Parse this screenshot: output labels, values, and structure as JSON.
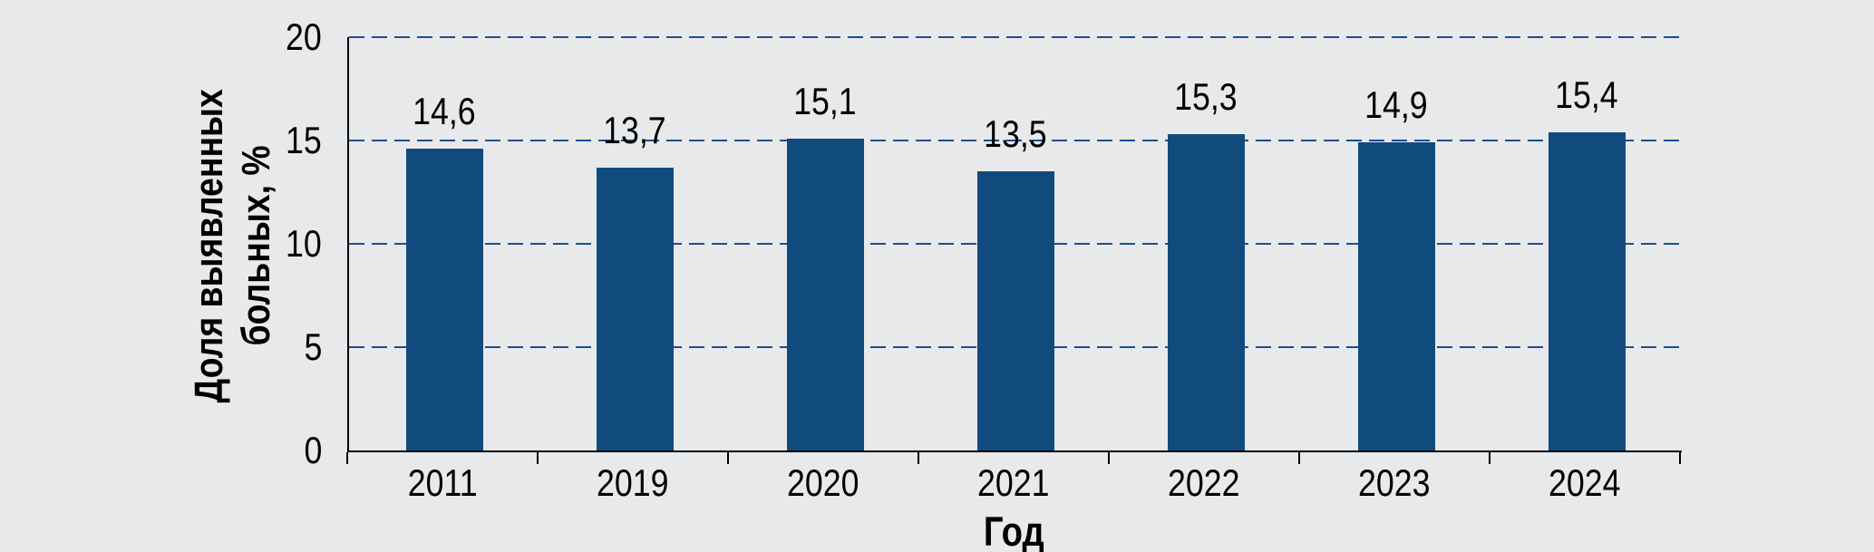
{
  "figure": {
    "background": "#e8e9eb"
  },
  "chart_data": {
    "type": "bar",
    "categories": [
      "2011",
      "2019",
      "2020",
      "2021",
      "2022",
      "2023",
      "2024"
    ],
    "values": [
      14.6,
      13.7,
      15.1,
      13.5,
      15.3,
      14.9,
      15.4
    ],
    "value_labels": [
      "14,6",
      "13,7",
      "15,1",
      "13,5",
      "15,3",
      "14,9",
      "15,4"
    ],
    "xlabel": "Год",
    "ylabel": "Доля выявленных больных, %",
    "ylabel_lines": [
      "Доля выявленных",
      "больных, %"
    ],
    "ylim": [
      0,
      20
    ],
    "yticks": [
      0,
      5,
      10,
      15,
      20
    ],
    "ytick_labels": [
      "0",
      "5",
      "10",
      "15",
      "20"
    ],
    "grid": "horizontal-dashed",
    "legend": "none",
    "bar_color": "#114b7e",
    "grid_color": "#1b4e8f",
    "axis_color": "#000000",
    "text_color": "#000000"
  }
}
